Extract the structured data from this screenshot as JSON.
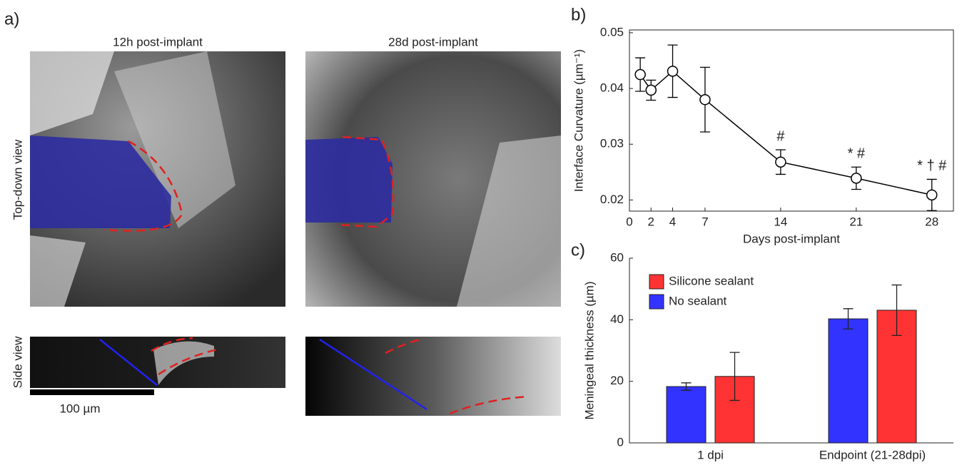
{
  "panel_a": {
    "label": "a)",
    "col_titles": [
      "12h post-implant",
      "28d post-implant"
    ],
    "row_labels": [
      "Top-down view",
      "Side view"
    ],
    "scale_bar": "100 µm"
  },
  "chart_data": [
    {
      "type": "line",
      "label": "b)",
      "xlabel": "Days post-implant",
      "ylabel": "Interface Curvature (µm⁻¹)",
      "x": [
        1,
        2,
        4,
        7,
        14,
        21,
        28
      ],
      "values": [
        0.0425,
        0.0397,
        0.0431,
        0.038,
        0.0268,
        0.0239,
        0.0209
      ],
      "errors": [
        0.003,
        0.0018,
        0.0047,
        0.0058,
        0.0022,
        0.002,
        0.0028
      ],
      "point_labels": [
        null,
        null,
        null,
        null,
        "#",
        "* #",
        "* † #"
      ],
      "color": "#000000",
      "xlim": [
        0,
        30
      ],
      "xticks": [
        0,
        2,
        4,
        7,
        14,
        21,
        28
      ],
      "ylim": [
        0.018,
        0.0505
      ],
      "yticks": [
        0.02,
        0.03,
        0.04,
        0.05
      ]
    },
    {
      "type": "bar",
      "label": "c)",
      "ylabel": "Meningeal thickness (µm)",
      "categories": [
        "1 dpi",
        "Endpoint (21-28dpi)"
      ],
      "series": [
        {
          "name": "No sealant",
          "color": "#3333ff",
          "values": [
            18.3,
            40.3
          ],
          "errors": [
            1.2,
            3.3
          ]
        },
        {
          "name": "Silicone sealant",
          "color": "#ff3333",
          "values": [
            21.6,
            43.1
          ],
          "errors": [
            7.8,
            8.2
          ]
        }
      ],
      "ylim": [
        0,
        60
      ],
      "yticks": [
        0,
        20,
        40,
        60
      ],
      "legend": "upper left"
    }
  ]
}
